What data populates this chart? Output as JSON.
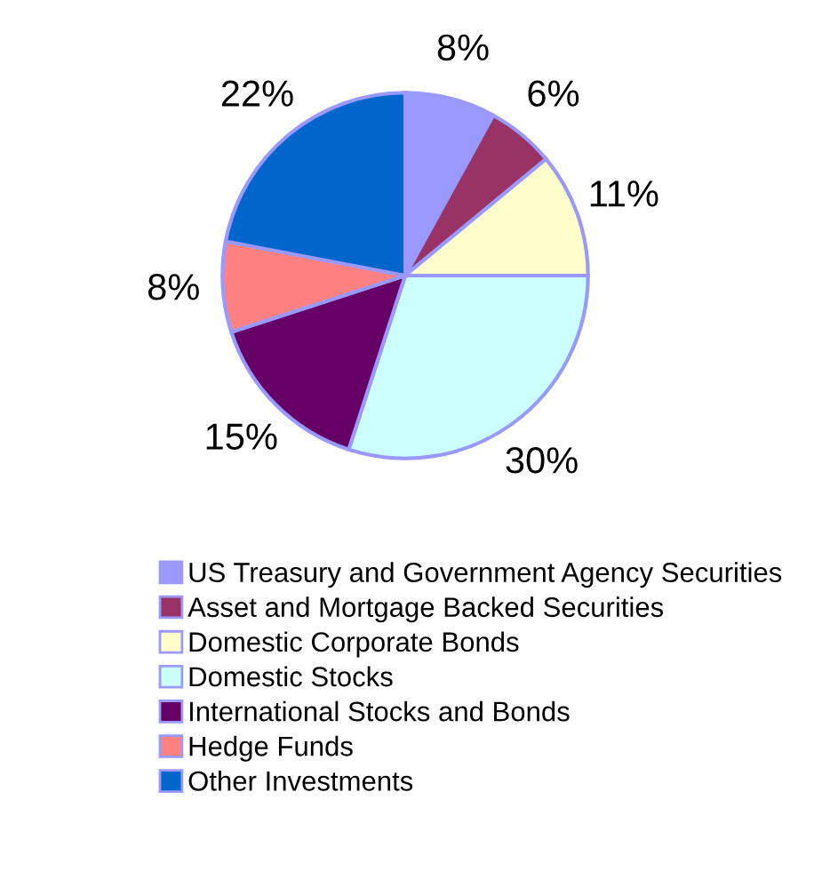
{
  "chart_data": {
    "type": "pie",
    "categories": [
      "US Treasury and Government Agency Securities",
      "Asset and Mortgage Backed Securities",
      "Domestic Corporate Bonds",
      "Domestic Stocks",
      "International Stocks and Bonds",
      "Hedge Funds",
      "Other Investments"
    ],
    "values": [
      8,
      6,
      11,
      30,
      15,
      8,
      22
    ],
    "value_labels": [
      "8%",
      "6%",
      "11%",
      "30%",
      "15%",
      "8%",
      "22%"
    ],
    "colors": [
      "#9999ff",
      "#993366",
      "#ffffcc",
      "#ccffff",
      "#660066",
      "#ff8080",
      "#0066cc"
    ],
    "legend": "bottom"
  }
}
